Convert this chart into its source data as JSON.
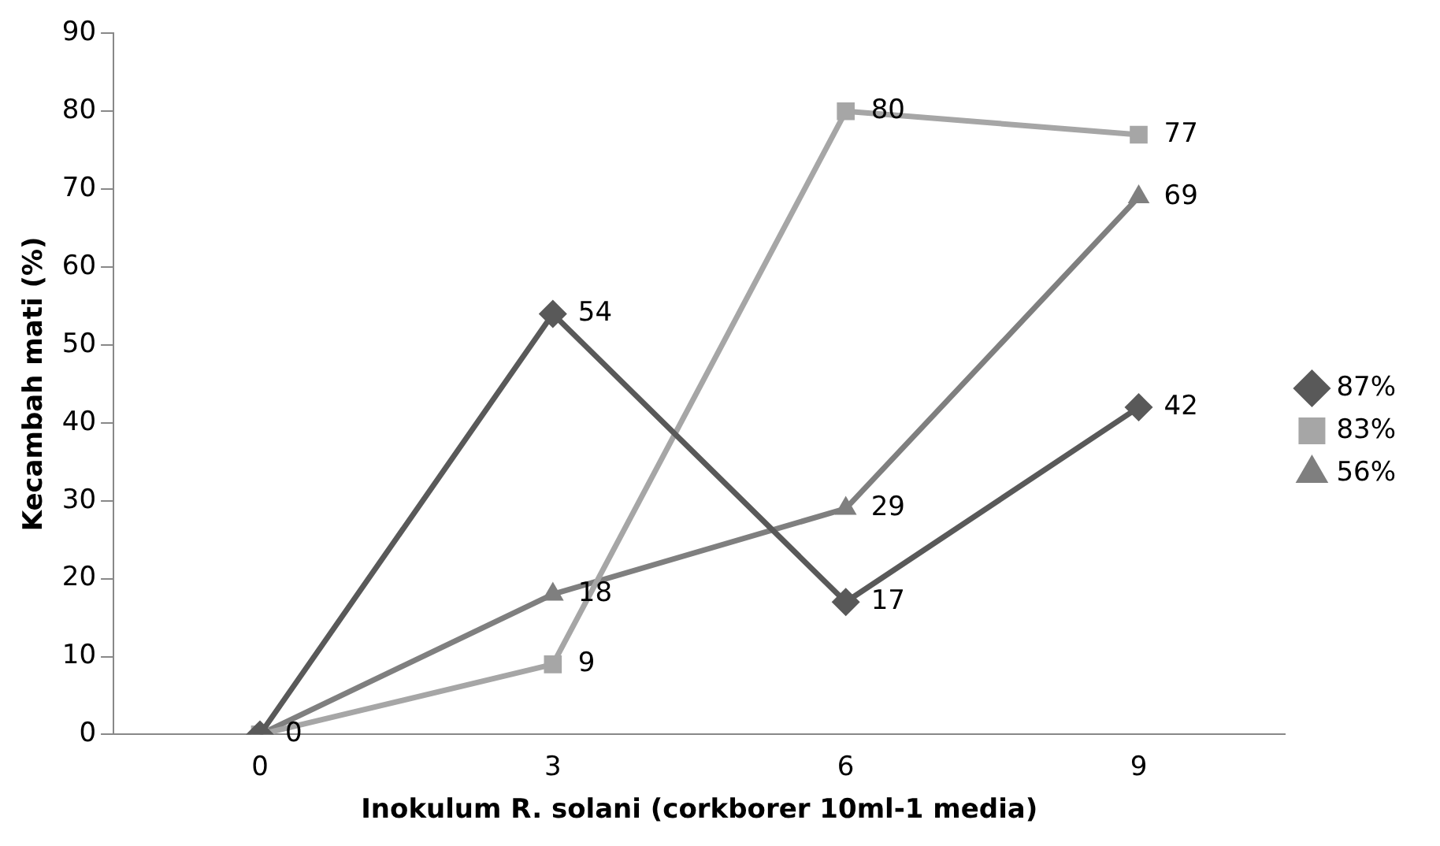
{
  "chart_data": {
    "type": "line",
    "xlabel": "Inokulum R. solani (corkborer 10ml-1 media)",
    "ylabel": "Kecambah mati (%)",
    "categories": [
      "0",
      "3",
      "6",
      "9"
    ],
    "series": [
      {
        "name": "87%",
        "color": "#595959",
        "marker": "diamond",
        "values": [
          0,
          54,
          17,
          42
        ],
        "value_labels": [
          "0",
          "54",
          "17",
          "42"
        ]
      },
      {
        "name": "83%",
        "color": "#a6a6a6",
        "marker": "square",
        "values": [
          0,
          9,
          80,
          77
        ],
        "value_labels": [
          null,
          "9",
          "80",
          "77"
        ]
      },
      {
        "name": "56%",
        "color": "#7f7f7f",
        "marker": "triangle",
        "values": [
          0,
          18,
          29,
          69
        ],
        "value_labels": [
          null,
          "18",
          "29",
          "69"
        ]
      }
    ],
    "ylim": [
      0,
      90
    ],
    "yticks": [
      0,
      10,
      20,
      30,
      40,
      50,
      60,
      70,
      80,
      90
    ],
    "grid": false,
    "legend": "right"
  }
}
